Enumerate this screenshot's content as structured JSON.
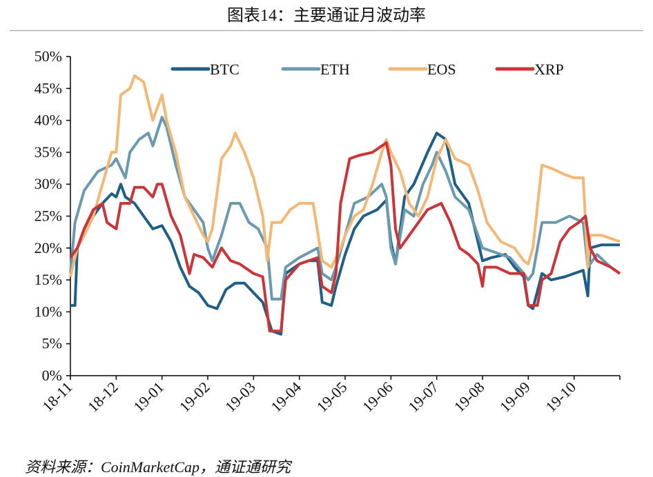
{
  "title": "图表14：主要通证月波动率",
  "source": "资料来源：CoinMarketCap，通证通研究",
  "chart_data": {
    "type": "line",
    "title": "图表14：主要通证月波动率",
    "xlabel": "",
    "ylabel": "",
    "ylim": [
      0,
      50
    ],
    "xlim": [
      0,
      12
    ],
    "y_ticks": [
      0,
      5,
      10,
      15,
      20,
      25,
      30,
      35,
      40,
      45,
      50
    ],
    "y_tick_labels": [
      "0%",
      "5%",
      "10%",
      "15%",
      "20%",
      "25%",
      "30%",
      "35%",
      "40%",
      "45%",
      "50%"
    ],
    "x_tick_labels": [
      "18-11",
      "18-12",
      "19-01",
      "19-02",
      "19-03",
      "19-04",
      "19-05",
      "19-06",
      "19-07",
      "19-08",
      "19-09",
      "19-10"
    ],
    "legend_position": "top",
    "grid": false,
    "series": [
      {
        "name": "BTC",
        "color": "#1f5f86",
        "points": [
          [
            0,
            11
          ],
          [
            0.1,
            11
          ],
          [
            0.15,
            20
          ],
          [
            0.3,
            22
          ],
          [
            0.5,
            25
          ],
          [
            0.7,
            27
          ],
          [
            0.9,
            28.5
          ],
          [
            1.0,
            28
          ],
          [
            1.1,
            30
          ],
          [
            1.2,
            28
          ],
          [
            1.4,
            27
          ],
          [
            1.6,
            25
          ],
          [
            1.8,
            23
          ],
          [
            2.0,
            23.5
          ],
          [
            2.2,
            21
          ],
          [
            2.4,
            17
          ],
          [
            2.6,
            14
          ],
          [
            2.8,
            13
          ],
          [
            3.0,
            11
          ],
          [
            3.2,
            10.5
          ],
          [
            3.4,
            13.5
          ],
          [
            3.6,
            14.5
          ],
          [
            3.8,
            14.5
          ],
          [
            4.0,
            13
          ],
          [
            4.2,
            11.5
          ],
          [
            4.4,
            7
          ],
          [
            4.6,
            6.5
          ],
          [
            4.7,
            16
          ],
          [
            5.0,
            17.5
          ],
          [
            5.2,
            18
          ],
          [
            5.4,
            18
          ],
          [
            5.5,
            11.5
          ],
          [
            5.7,
            11
          ],
          [
            5.8,
            14
          ],
          [
            6.0,
            19
          ],
          [
            6.2,
            23
          ],
          [
            6.4,
            25
          ],
          [
            6.7,
            26
          ],
          [
            6.9,
            27.5
          ],
          [
            7.0,
            21
          ],
          [
            7.1,
            17.5
          ],
          [
            7.3,
            28
          ],
          [
            7.5,
            30
          ],
          [
            7.8,
            35
          ],
          [
            8.0,
            38
          ],
          [
            8.2,
            37
          ],
          [
            8.4,
            30
          ],
          [
            8.7,
            27
          ],
          [
            9.0,
            18
          ],
          [
            9.2,
            18.5
          ],
          [
            9.5,
            19
          ],
          [
            9.7,
            17
          ],
          [
            9.9,
            15.5
          ],
          [
            10.0,
            11
          ],
          [
            10.1,
            10.5
          ],
          [
            10.3,
            16
          ],
          [
            10.5,
            15
          ],
          [
            10.8,
            15.5
          ],
          [
            11.0,
            16
          ],
          [
            11.2,
            16.5
          ],
          [
            11.3,
            12.5
          ],
          [
            11.35,
            20
          ],
          [
            11.6,
            20.5
          ],
          [
            12,
            20.5
          ]
        ]
      },
      {
        "name": "ETH",
        "color": "#6b9ab0",
        "points": [
          [
            0,
            16
          ],
          [
            0.1,
            24
          ],
          [
            0.3,
            29
          ],
          [
            0.6,
            32
          ],
          [
            0.9,
            33
          ],
          [
            1.0,
            34
          ],
          [
            1.2,
            31
          ],
          [
            1.3,
            35
          ],
          [
            1.5,
            37
          ],
          [
            1.7,
            38
          ],
          [
            1.8,
            36
          ],
          [
            2.0,
            40.5
          ],
          [
            2.1,
            39
          ],
          [
            2.3,
            33
          ],
          [
            2.5,
            28
          ],
          [
            2.7,
            26
          ],
          [
            2.9,
            24
          ],
          [
            3.0,
            20
          ],
          [
            3.1,
            18
          ],
          [
            3.3,
            22
          ],
          [
            3.5,
            27
          ],
          [
            3.7,
            27
          ],
          [
            3.9,
            24
          ],
          [
            4.1,
            23
          ],
          [
            4.3,
            20
          ],
          [
            4.4,
            12
          ],
          [
            4.6,
            12
          ],
          [
            4.7,
            17
          ],
          [
            5.0,
            18.5
          ],
          [
            5.4,
            20
          ],
          [
            5.5,
            16
          ],
          [
            5.7,
            15
          ],
          [
            5.8,
            17
          ],
          [
            6.0,
            22
          ],
          [
            6.2,
            27
          ],
          [
            6.5,
            28
          ],
          [
            6.8,
            30
          ],
          [
            6.9,
            28
          ],
          [
            7.0,
            20
          ],
          [
            7.1,
            17.5
          ],
          [
            7.3,
            26
          ],
          [
            7.5,
            25
          ],
          [
            7.7,
            30
          ],
          [
            7.9,
            33
          ],
          [
            8.0,
            35
          ],
          [
            8.2,
            32
          ],
          [
            8.4,
            28
          ],
          [
            8.7,
            26
          ],
          [
            9.0,
            20
          ],
          [
            9.2,
            19.5
          ],
          [
            9.6,
            18.5
          ],
          [
            9.9,
            16
          ],
          [
            10.0,
            15
          ],
          [
            10.1,
            16
          ],
          [
            10.3,
            24
          ],
          [
            10.6,
            24
          ],
          [
            10.9,
            25
          ],
          [
            11.2,
            24
          ],
          [
            11.3,
            17
          ],
          [
            11.5,
            19
          ],
          [
            11.8,
            17
          ],
          [
            12,
            16
          ]
        ]
      },
      {
        "name": "EOS",
        "color": "#f2b877",
        "points": [
          [
            0,
            15.5
          ],
          [
            0.15,
            20
          ],
          [
            0.3,
            22
          ],
          [
            0.5,
            25
          ],
          [
            0.7,
            30
          ],
          [
            0.9,
            35
          ],
          [
            1.0,
            35
          ],
          [
            1.1,
            44
          ],
          [
            1.3,
            45
          ],
          [
            1.4,
            47
          ],
          [
            1.6,
            46
          ],
          [
            1.8,
            40
          ],
          [
            1.9,
            42
          ],
          [
            2.0,
            44
          ],
          [
            2.1,
            40
          ],
          [
            2.3,
            35
          ],
          [
            2.5,
            28
          ],
          [
            2.7,
            25
          ],
          [
            2.9,
            22
          ],
          [
            3.0,
            21
          ],
          [
            3.1,
            23
          ],
          [
            3.3,
            34
          ],
          [
            3.5,
            36
          ],
          [
            3.6,
            38
          ],
          [
            3.8,
            35
          ],
          [
            4.0,
            31
          ],
          [
            4.2,
            25
          ],
          [
            4.3,
            18
          ],
          [
            4.4,
            24
          ],
          [
            4.6,
            24
          ],
          [
            4.8,
            26
          ],
          [
            5.0,
            27
          ],
          [
            5.3,
            27
          ],
          [
            5.5,
            18
          ],
          [
            5.7,
            17
          ],
          [
            5.9,
            20
          ],
          [
            6.0,
            22
          ],
          [
            6.2,
            25
          ],
          [
            6.4,
            26
          ],
          [
            6.6,
            30
          ],
          [
            6.8,
            35
          ],
          [
            6.9,
            37
          ],
          [
            7.0,
            35
          ],
          [
            7.2,
            32
          ],
          [
            7.4,
            27
          ],
          [
            7.6,
            25
          ],
          [
            7.8,
            28
          ],
          [
            8.0,
            34
          ],
          [
            8.2,
            37
          ],
          [
            8.4,
            34
          ],
          [
            8.7,
            33
          ],
          [
            8.9,
            29
          ],
          [
            9.1,
            24
          ],
          [
            9.4,
            21
          ],
          [
            9.7,
            20
          ],
          [
            9.9,
            18
          ],
          [
            10.0,
            17.5
          ],
          [
            10.1,
            20
          ],
          [
            10.3,
            33
          ],
          [
            10.5,
            32.5
          ],
          [
            10.8,
            31.5
          ],
          [
            11.0,
            31
          ],
          [
            11.2,
            31
          ],
          [
            11.3,
            17
          ],
          [
            11.35,
            22
          ],
          [
            11.6,
            22
          ],
          [
            12,
            21
          ]
        ]
      },
      {
        "name": "XRP",
        "color": "#c9363a",
        "points": [
          [
            0,
            18.5
          ],
          [
            0.15,
            20
          ],
          [
            0.3,
            23
          ],
          [
            0.5,
            26
          ],
          [
            0.7,
            27
          ],
          [
            0.8,
            24
          ],
          [
            1.0,
            23
          ],
          [
            1.1,
            27
          ],
          [
            1.3,
            27
          ],
          [
            1.4,
            29.5
          ],
          [
            1.6,
            29.5
          ],
          [
            1.8,
            28
          ],
          [
            1.9,
            30
          ],
          [
            2.0,
            30
          ],
          [
            2.2,
            25
          ],
          [
            2.4,
            22
          ],
          [
            2.6,
            16
          ],
          [
            2.7,
            19
          ],
          [
            2.9,
            18.5
          ],
          [
            3.1,
            17
          ],
          [
            3.3,
            20
          ],
          [
            3.5,
            18
          ],
          [
            3.7,
            17.5
          ],
          [
            4.0,
            16
          ],
          [
            4.2,
            15.5
          ],
          [
            4.35,
            7
          ],
          [
            4.6,
            7
          ],
          [
            4.7,
            15
          ],
          [
            5.0,
            17.5
          ],
          [
            5.4,
            18.5
          ],
          [
            5.5,
            14
          ],
          [
            5.7,
            13
          ],
          [
            5.8,
            16
          ],
          [
            5.9,
            27
          ],
          [
            6.1,
            34
          ],
          [
            6.3,
            34.5
          ],
          [
            6.6,
            35
          ],
          [
            6.9,
            36.5
          ],
          [
            7.0,
            33
          ],
          [
            7.1,
            23
          ],
          [
            7.2,
            20
          ],
          [
            7.4,
            22
          ],
          [
            7.6,
            24
          ],
          [
            7.8,
            26
          ],
          [
            8.1,
            27
          ],
          [
            8.3,
            24
          ],
          [
            8.5,
            20
          ],
          [
            8.7,
            19
          ],
          [
            8.9,
            17.5
          ],
          [
            9.0,
            14
          ],
          [
            9.05,
            17
          ],
          [
            9.3,
            17
          ],
          [
            9.6,
            16
          ],
          [
            9.9,
            16
          ],
          [
            10.0,
            11
          ],
          [
            10.2,
            11
          ],
          [
            10.3,
            15
          ],
          [
            10.5,
            16
          ],
          [
            10.7,
            21
          ],
          [
            10.9,
            23
          ],
          [
            11.1,
            24
          ],
          [
            11.25,
            25
          ],
          [
            11.35,
            20
          ],
          [
            11.5,
            18
          ],
          [
            11.8,
            17
          ],
          [
            12,
            16
          ]
        ]
      }
    ]
  }
}
